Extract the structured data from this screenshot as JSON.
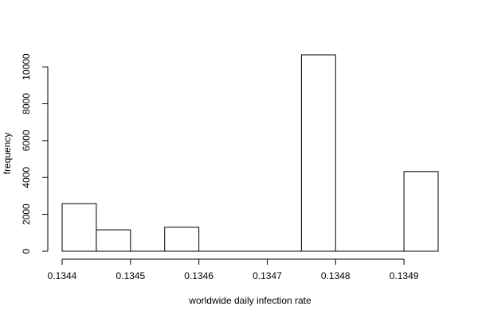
{
  "chart_data": {
    "type": "bar",
    "title": "",
    "xlabel": "worldwide daily infection rate",
    "ylabel": "frequency",
    "bins": [
      {
        "start": 0.1344,
        "end": 0.13445,
        "count": 2580
      },
      {
        "start": 0.13445,
        "end": 0.1345,
        "count": 1160
      },
      {
        "start": 0.1345,
        "end": 0.13455,
        "count": 0
      },
      {
        "start": 0.13455,
        "end": 0.1346,
        "count": 1300
      },
      {
        "start": 0.1346,
        "end": 0.13465,
        "count": 0
      },
      {
        "start": 0.13465,
        "end": 0.1347,
        "count": 0
      },
      {
        "start": 0.1347,
        "end": 0.13475,
        "count": 0
      },
      {
        "start": 0.13475,
        "end": 0.1348,
        "count": 10650
      },
      {
        "start": 0.1348,
        "end": 0.13485,
        "count": 0
      },
      {
        "start": 0.13485,
        "end": 0.1349,
        "count": 0
      },
      {
        "start": 0.1349,
        "end": 0.13495,
        "count": 4320
      }
    ],
    "xlim": [
      0.1344,
      0.13495
    ],
    "ylim": [
      0,
      10650
    ],
    "xticks": [
      0.1344,
      0.1345,
      0.1346,
      0.1347,
      0.1348,
      0.1349
    ],
    "xtick_labels": [
      "0.1344",
      "0.1345",
      "0.1346",
      "0.1347",
      "0.1348",
      "0.1349"
    ],
    "yticks": [
      0,
      2000,
      4000,
      6000,
      8000,
      10000
    ],
    "ytick_labels": [
      "0",
      "2000",
      "4000",
      "6000",
      "8000",
      "10000"
    ],
    "grid": false,
    "legend": "none"
  }
}
